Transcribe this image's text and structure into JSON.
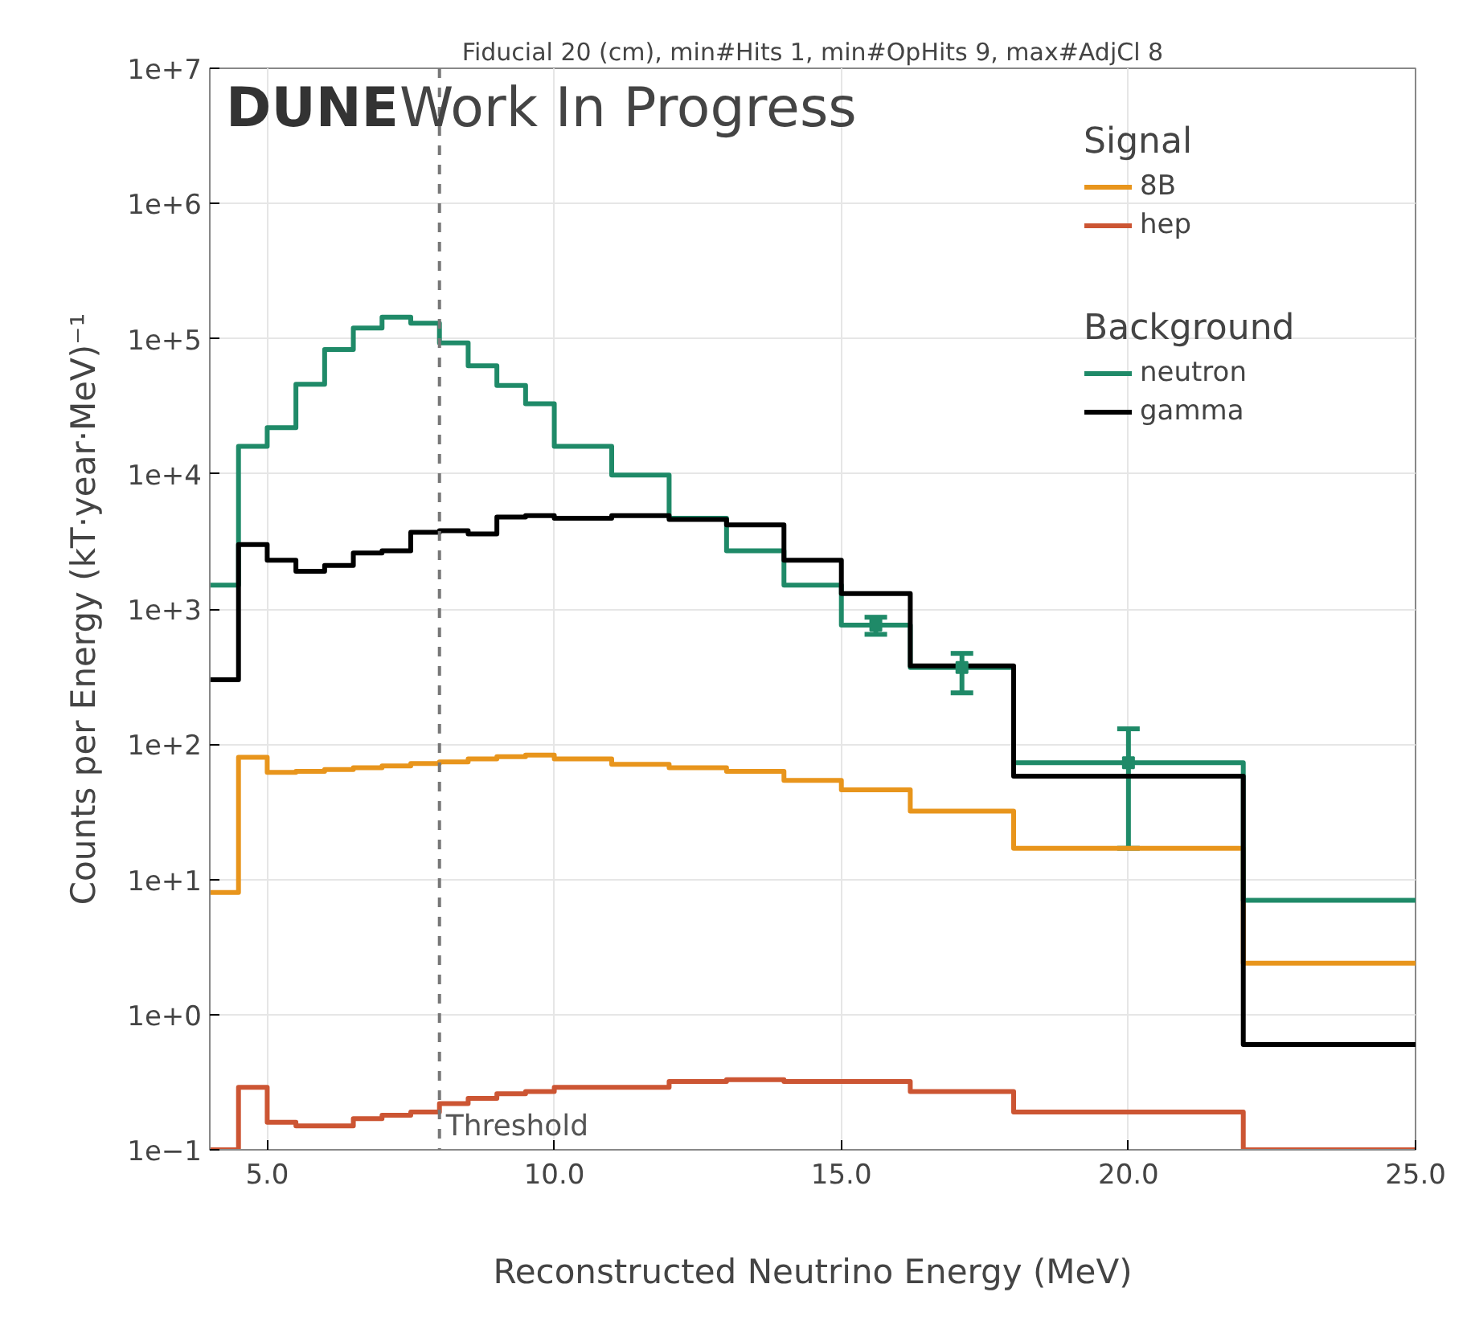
{
  "chart_data": {
    "type": "histogram",
    "title": "Fiducial 20 (cm), min#Hits 1, min#OpHits 9, max#AdjCl 8",
    "xlabel": "Reconstructed Neutrino Energy (MeV)",
    "ylabel": "Counts per Energy (kT·year·MeV)⁻¹",
    "legend_title": [
      "Signal",
      "Background"
    ],
    "annotations": [
      "DUNE",
      "Work In Progress"
    ],
    "bins": [
      4,
      4.5,
      5,
      5.5,
      6,
      6.5,
      7,
      7.5,
      8,
      8.5,
      9,
      9.5,
      10,
      11,
      12,
      13,
      14,
      15,
      16.2,
      18,
      22,
      25
    ],
    "series": [
      {
        "name": "8B",
        "color": "#e8951c",
        "values": [
          8,
          80,
          62,
          63,
          65,
          67,
          69,
          72,
          74,
          78,
          81,
          83,
          78,
          71,
          67,
          63,
          54,
          46,
          32,
          17,
          2.4
        ]
      },
      {
        "name": "hep",
        "color": "#cc5533",
        "values": [
          null,
          0.29,
          0.16,
          0.15,
          0.15,
          0.17,
          0.18,
          0.19,
          0.22,
          0.24,
          0.26,
          0.27,
          0.29,
          0.29,
          0.32,
          0.33,
          0.32,
          0.32,
          0.27,
          0.19,
          null
        ]
      },
      {
        "name": "neutron",
        "color": "#1f8a68",
        "values": [
          1500,
          16000,
          22000,
          46000,
          83000,
          120000,
          144000,
          130000,
          93000,
          63000,
          45000,
          33000,
          16000,
          9800,
          4700,
          2700,
          1500,
          760,
          370,
          73,
          7
        ]
      },
      {
        "name": "gamma",
        "color": "#000000",
        "values": [
          300,
          3000,
          2300,
          1900,
          2100,
          2600,
          2700,
          3700,
          3800,
          3600,
          4800,
          4900,
          4700,
          4900,
          4600,
          4200,
          2300,
          1300,
          380,
          58,
          0.6
        ]
      },
      {
        "type": "scatter",
        "marker": "square",
        "color": "#1f8a68",
        "x": [
          15.6,
          17.1,
          20
        ],
        "values": [
          760,
          370,
          73
        ],
        "errors": [
          [
            650,
            870
          ],
          [
            240,
            470
          ],
          [
            17,
            130
          ]
        ]
      }
    ],
    "log": "y",
    "xlim": [
      4,
      25
    ],
    "ylim": [
      0.1,
      10000000
    ],
    "xticks": [
      {
        "value": 5,
        "label": "5.0"
      },
      {
        "value": 10,
        "label": "10.0"
      },
      {
        "value": 15,
        "label": "15.0"
      },
      {
        "value": 20,
        "label": "20.0"
      },
      {
        "value": 25,
        "label": "25.0"
      }
    ],
    "yticks": [
      {
        "value": 0.1,
        "label": "1e−1"
      },
      {
        "value": 1,
        "label": "1e+0"
      },
      {
        "value": 10,
        "label": "1e+1"
      },
      {
        "value": 100,
        "label": "1e+2"
      },
      {
        "value": 1000,
        "label": "1e+3"
      },
      {
        "value": 10000,
        "label": "1e+4"
      },
      {
        "value": 100000,
        "label": "1e+5"
      },
      {
        "value": 1000000,
        "label": "1e+6"
      },
      {
        "value": 10000000,
        "label": "1e+7"
      }
    ],
    "grid": true,
    "legend": "top right",
    "ref_lines": [
      {
        "axis": "x",
        "value": 8,
        "label": "Threshold",
        "color": "#777777",
        "line_style": "dashed"
      }
    ]
  }
}
